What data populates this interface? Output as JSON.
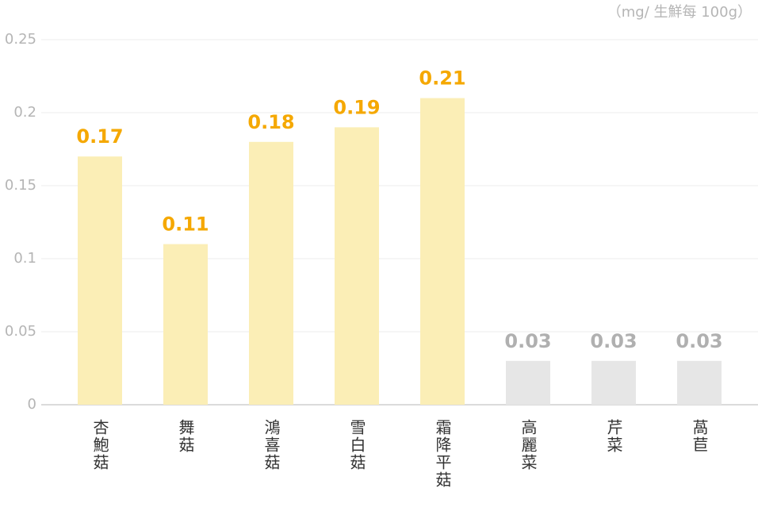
{
  "chart_data": {
    "type": "bar",
    "unit_label": "（mg/ 生鮮每 100g）",
    "categories": [
      "杏鮑菇",
      "舞菇",
      "鴻喜菇",
      "雪白菇",
      "霜降平菇",
      "高麗菜",
      "芹菜",
      "萵苣"
    ],
    "values": [
      0.17,
      0.11,
      0.18,
      0.19,
      0.21,
      0.03,
      0.03,
      0.03
    ],
    "colors": [
      "#fbeeb6",
      "#fbeeb6",
      "#fbeeb6",
      "#fbeeb6",
      "#fbeeb6",
      "#e6e6e6",
      "#e6e6e6",
      "#e6e6e6"
    ],
    "label_colors": [
      "#f5a800",
      "#f5a800",
      "#f5a800",
      "#f5a800",
      "#f5a800",
      "#b0b0b0",
      "#b0b0b0",
      "#b0b0b0"
    ],
    "ylim": [
      0,
      0.25
    ],
    "yticks": [
      0,
      0.05,
      0.1,
      0.15,
      0.2,
      0.25
    ],
    "grid": true
  }
}
